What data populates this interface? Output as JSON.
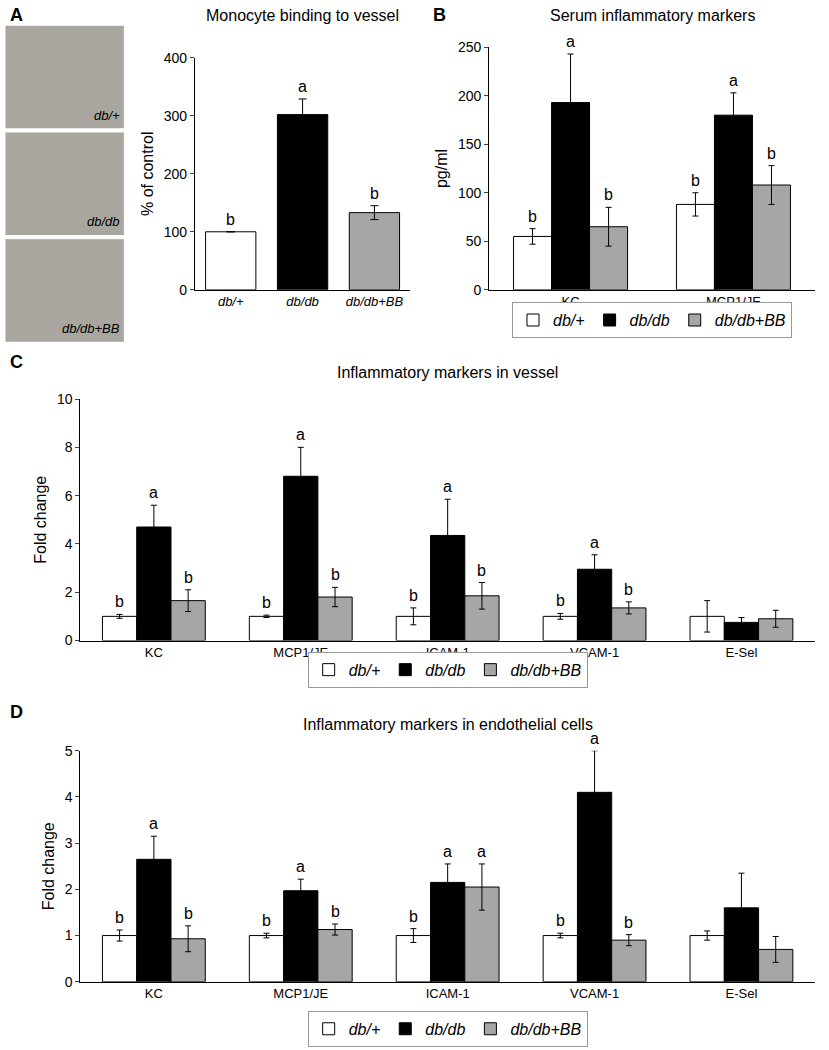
{
  "chart_data": [
    {
      "panel": "A",
      "type": "bar",
      "title": "Monocyte binding to vessel",
      "y_label": "% of control",
      "categories": [
        "db/+",
        "db/db",
        "db/db+BB"
      ],
      "values": [
        100,
        302,
        133
      ],
      "errors": [
        0,
        27,
        12
      ],
      "colors": [
        "#ffffff",
        "#000000",
        "#a6a6a6"
      ],
      "letters": [
        "b",
        "a",
        "b"
      ],
      "image_labels": [
        "db/+",
        "db/db",
        "db/db+BB"
      ],
      "ylim": [
        0,
        400
      ],
      "yticks": [
        0,
        100,
        200,
        300,
        400
      ],
      "grid": false
    },
    {
      "panel": "B",
      "type": "bar",
      "title": "Serum inflammatory markers",
      "y_label": "pg/ml",
      "categories": [
        "KC",
        "MCP1/JE"
      ],
      "series": [
        {
          "name": "db/+",
          "color": "#ffffff",
          "values": [
            55,
            88
          ],
          "errors": [
            8,
            12
          ],
          "letters": [
            "b",
            "b"
          ]
        },
        {
          "name": "db/db",
          "color": "#000000",
          "values": [
            193,
            180
          ],
          "errors": [
            50,
            23
          ],
          "letters": [
            "a",
            "a"
          ]
        },
        {
          "name": "db/db+BB",
          "color": "#a6a6a6",
          "values": [
            65,
            108
          ],
          "errors": [
            20,
            20
          ],
          "letters": [
            "b",
            "b"
          ]
        }
      ],
      "ylim": [
        0,
        250
      ],
      "yticks": [
        0,
        50,
        100,
        150,
        200,
        250
      ],
      "grid": false,
      "legend": "bottom"
    },
    {
      "panel": "C",
      "type": "bar",
      "title": "Inflammatory markers in vessel",
      "y_label": "Fold change",
      "categories": [
        "KC",
        "MCP1/JE",
        "ICAM-1",
        "VCAM-1",
        "E-Sel"
      ],
      "series": [
        {
          "name": "db/+",
          "color": "#ffffff",
          "values": [
            1,
            1,
            1,
            1,
            1
          ],
          "errors": [
            0.08,
            0.05,
            0.35,
            0.12,
            0.65
          ],
          "letters": [
            "b",
            "b",
            "b",
            "b",
            null
          ]
        },
        {
          "name": "db/db",
          "color": "#000000",
          "values": [
            4.7,
            6.8,
            4.35,
            2.95,
            0.75
          ],
          "errors": [
            0.9,
            1.2,
            1.5,
            0.6,
            0.2
          ],
          "letters": [
            "a",
            "a",
            "a",
            "a",
            null
          ]
        },
        {
          "name": "db/db+BB",
          "color": "#a6a6a6",
          "values": [
            1.65,
            1.8,
            1.85,
            1.35,
            0.9
          ],
          "errors": [
            0.45,
            0.4,
            0.55,
            0.25,
            0.35
          ],
          "letters": [
            "b",
            "b",
            "b",
            "b",
            null
          ]
        }
      ],
      "ylim": [
        0,
        10
      ],
      "yticks": [
        0,
        2,
        4,
        6,
        8,
        10
      ],
      "grid": false,
      "legend": "bottom"
    },
    {
      "panel": "D",
      "type": "bar",
      "title": "Inflammatory markers in endothelial cells",
      "y_label": "Fold change",
      "categories": [
        "KC",
        "MCP1/JE",
        "ICAM-1",
        "VCAM-1",
        "E-Sel"
      ],
      "series": [
        {
          "name": "db/+",
          "color": "#ffffff",
          "values": [
            1,
            1,
            1,
            1,
            1
          ],
          "errors": [
            0.12,
            0.05,
            0.15,
            0.05,
            0.1
          ],
          "letters": [
            "b",
            "b",
            "b",
            "b",
            null
          ]
        },
        {
          "name": "db/db",
          "color": "#000000",
          "values": [
            2.65,
            1.97,
            2.15,
            4.1,
            1.6
          ],
          "errors": [
            0.5,
            0.25,
            0.4,
            0.9,
            0.75
          ],
          "letters": [
            "a",
            "a",
            "a",
            "a",
            null
          ]
        },
        {
          "name": "db/db+BB",
          "color": "#a6a6a6",
          "values": [
            0.93,
            1.13,
            2.05,
            0.9,
            0.7
          ],
          "errors": [
            0.28,
            0.12,
            0.5,
            0.12,
            0.28
          ],
          "letters": [
            "b",
            "b",
            "a",
            "b",
            null
          ]
        }
      ],
      "ylim": [
        0,
        5
      ],
      "yticks": [
        0,
        1,
        2,
        3,
        4,
        5
      ],
      "grid": false,
      "legend": "bottom"
    }
  ]
}
